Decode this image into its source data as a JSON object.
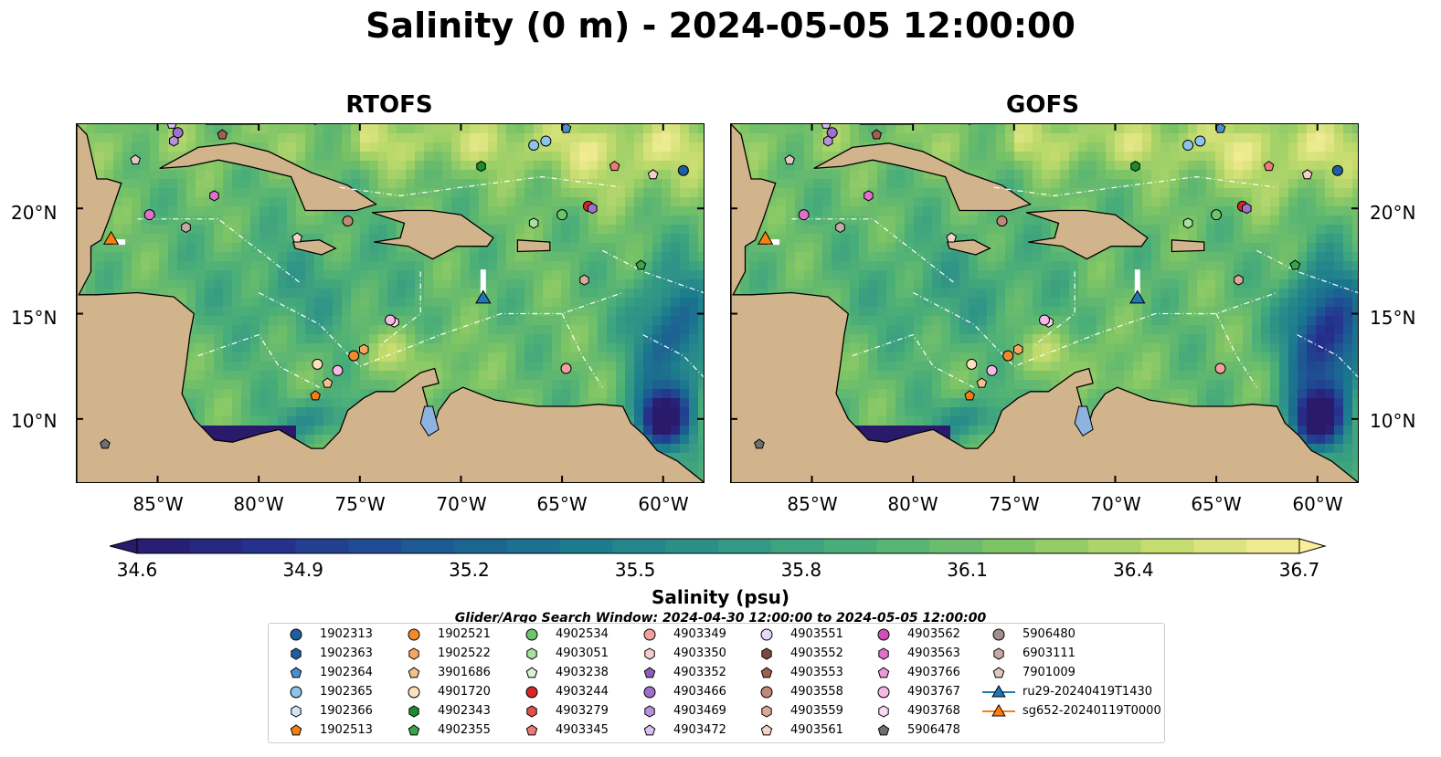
{
  "figure": {
    "title": "Salinity (0 m) - 2024-05-05 12:00:00",
    "panels": [
      {
        "title": "RTOFS"
      },
      {
        "title": "GOFS"
      }
    ],
    "lon_ticks": [
      "85°W",
      "80°W",
      "75°W",
      "70°W",
      "65°W",
      "60°W"
    ],
    "lat_ticks": [
      "20°N",
      "15°N",
      "10°N"
    ],
    "extent": {
      "lon": [
        -89,
        -58
      ],
      "lat": [
        7,
        24
      ]
    },
    "colors": {
      "land": "#d2b48c",
      "lake": "#8fb3e0",
      "contour_line": "#1a1a1a",
      "eez_line": "#ffffff"
    }
  },
  "colorbar": {
    "label": "Salinity (psu)",
    "ticks": [
      "34.6",
      "34.9",
      "35.2",
      "35.5",
      "35.8",
      "36.1",
      "36.4",
      "36.7"
    ],
    "min": 34.6,
    "max": 36.7,
    "extend": "both",
    "cmap": "haline"
  },
  "search_window": "Glider/Argo Search Window: 2024-04-30 12:00:00 to 2024-05-05 12:00:00",
  "legend": [
    {
      "label": "1902313",
      "marker": "circle",
      "color": "#1f5fa0"
    },
    {
      "label": "1902363",
      "marker": "hexagon",
      "color": "#1f5fa0"
    },
    {
      "label": "1902364",
      "marker": "pentagon",
      "color": "#4a90d0"
    },
    {
      "label": "1902365",
      "marker": "circle",
      "color": "#8ec4ea"
    },
    {
      "label": "1902366",
      "marker": "hexagon",
      "color": "#cfe8f8"
    },
    {
      "label": "1902513",
      "marker": "pentagon",
      "color": "#f57f17"
    },
    {
      "label": "1902521",
      "marker": "circle",
      "color": "#f08a2c"
    },
    {
      "label": "1902522",
      "marker": "hexagon",
      "color": "#f8a85c"
    },
    {
      "label": "3901686",
      "marker": "pentagon",
      "color": "#f6c08a"
    },
    {
      "label": "4901720",
      "marker": "circle",
      "color": "#fde0c0"
    },
    {
      "label": "4902343",
      "marker": "hexagon",
      "color": "#1e8a2e"
    },
    {
      "label": "4902355",
      "marker": "pentagon",
      "color": "#35a845"
    },
    {
      "label": "4902534",
      "marker": "circle",
      "color": "#6cc46c"
    },
    {
      "label": "4903051",
      "marker": "hexagon",
      "color": "#a8e0a0"
    },
    {
      "label": "4903238",
      "marker": "pentagon",
      "color": "#d8f4d0"
    },
    {
      "label": "4903244",
      "marker": "circle",
      "color": "#d62728"
    },
    {
      "label": "4903279",
      "marker": "hexagon",
      "color": "#e0504a"
    },
    {
      "label": "4903345",
      "marker": "pentagon",
      "color": "#ee7a78"
    },
    {
      "label": "4903349",
      "marker": "circle",
      "color": "#f4a0a0"
    },
    {
      "label": "4903350",
      "marker": "hexagon",
      "color": "#f8cccc"
    },
    {
      "label": "4903352",
      "marker": "pentagon",
      "color": "#8b5fbf"
    },
    {
      "label": "4903466",
      "marker": "circle",
      "color": "#a070cc"
    },
    {
      "label": "4903469",
      "marker": "hexagon",
      "color": "#b890dc"
    },
    {
      "label": "4903472",
      "marker": "pentagon",
      "color": "#d8c0f0"
    },
    {
      "label": "4903551",
      "marker": "circle",
      "color": "#e8d8f8"
    },
    {
      "label": "4903552",
      "marker": "hexagon",
      "color": "#7a4a40"
    },
    {
      "label": "4903553",
      "marker": "pentagon",
      "color": "#a06050"
    },
    {
      "label": "4903558",
      "marker": "circle",
      "color": "#c08878"
    },
    {
      "label": "4903559",
      "marker": "hexagon",
      "color": "#dca898"
    },
    {
      "label": "4903561",
      "marker": "pentagon",
      "color": "#f4d4c8"
    },
    {
      "label": "4903562",
      "marker": "circle",
      "color": "#d050b8"
    },
    {
      "label": "4903563",
      "marker": "hexagon",
      "color": "#e070cc"
    },
    {
      "label": "4903766",
      "marker": "pentagon",
      "color": "#ee9ad8"
    },
    {
      "label": "4903767",
      "marker": "circle",
      "color": "#f6b8e4"
    },
    {
      "label": "4903768",
      "marker": "hexagon",
      "color": "#fad8f0"
    },
    {
      "label": "5906478",
      "marker": "pentagon",
      "color": "#707070"
    },
    {
      "label": "5906480",
      "marker": "circle",
      "color": "#a09090"
    },
    {
      "label": "6903111",
      "marker": "hexagon",
      "color": "#c4aaa4"
    },
    {
      "label": "7901009",
      "marker": "pentagon",
      "color": "#e0c8c0"
    },
    {
      "label": "ru29-20240419T1430",
      "marker": "triangle-line",
      "color": "#1f77b4"
    },
    {
      "label": "sg652-20240119T0000",
      "marker": "triangle-line",
      "color": "#ff7f0e"
    }
  ],
  "observations": [
    {
      "marker": "pentagon",
      "color": "#d8c0f0",
      "lon": -84.3,
      "lat": 24.0
    },
    {
      "marker": "circle",
      "color": "#a070cc",
      "lon": -84.0,
      "lat": 23.6
    },
    {
      "marker": "hexagon",
      "color": "#b890dc",
      "lon": -84.2,
      "lat": 23.2
    },
    {
      "marker": "pentagon",
      "color": "#a06050",
      "lon": -81.8,
      "lat": 23.5
    },
    {
      "marker": "pentagon",
      "color": "#e0c8c0",
      "lon": -86.1,
      "lat": 22.3
    },
    {
      "marker": "hexagon",
      "color": "#e070cc",
      "lon": -82.2,
      "lat": 20.6
    },
    {
      "marker": "circle",
      "color": "#e070cc",
      "lon": -85.4,
      "lat": 19.7
    },
    {
      "marker": "hexagon",
      "color": "#c4aaa4",
      "lon": -83.6,
      "lat": 19.1
    },
    {
      "marker": "circle",
      "color": "#c08878",
      "lon": -75.6,
      "lat": 19.4
    },
    {
      "marker": "pentagon",
      "color": "#f4d4c8",
      "lon": -78.1,
      "lat": 18.6
    },
    {
      "marker": "circle",
      "color": "#8ec4ea",
      "lon": -66.4,
      "lat": 23.0
    },
    {
      "marker": "circle",
      "color": "#8ec4ea",
      "lon": -65.8,
      "lat": 23.2
    },
    {
      "marker": "pentagon",
      "color": "#4a90d0",
      "lon": -64.8,
      "lat": 23.8
    },
    {
      "marker": "hexagon",
      "color": "#1e8a2e",
      "lon": -69.0,
      "lat": 22.0
    },
    {
      "marker": "pentagon",
      "color": "#ee7a78",
      "lon": -62.4,
      "lat": 22.0
    },
    {
      "marker": "pentagon",
      "color": "#f8cccc",
      "lon": -60.5,
      "lat": 21.6
    },
    {
      "marker": "circle",
      "color": "#1f5fa0",
      "lon": -59.0,
      "lat": 21.8
    },
    {
      "marker": "hexagon",
      "color": "#a8e0a0",
      "lon": -66.4,
      "lat": 19.3
    },
    {
      "marker": "circle",
      "color": "#6cc46c",
      "lon": -65.0,
      "lat": 19.7
    },
    {
      "marker": "circle",
      "color": "#d62728",
      "lon": -63.7,
      "lat": 20.1
    },
    {
      "marker": "hexagon",
      "color": "#a070cc",
      "lon": -63.5,
      "lat": 20.0
    },
    {
      "marker": "pentagon",
      "color": "#35a845",
      "lon": -61.1,
      "lat": 17.3
    },
    {
      "marker": "hexagon",
      "color": "#dca898",
      "lon": -63.9,
      "lat": 16.6
    },
    {
      "marker": "hexagon",
      "color": "#fad8f0",
      "lon": -73.3,
      "lat": 14.6
    },
    {
      "marker": "circle",
      "color": "#f6b8e4",
      "lon": -73.5,
      "lat": 14.7
    },
    {
      "marker": "hexagon",
      "color": "#f8a85c",
      "lon": -74.8,
      "lat": 13.3
    },
    {
      "marker": "circle",
      "color": "#f08a2c",
      "lon": -75.3,
      "lat": 13.0
    },
    {
      "marker": "circle",
      "color": "#f6b8e4",
      "lon": -76.1,
      "lat": 12.3
    },
    {
      "marker": "circle",
      "color": "#fde0c0",
      "lon": -77.1,
      "lat": 12.6
    },
    {
      "marker": "pentagon",
      "color": "#f6c08a",
      "lon": -76.6,
      "lat": 11.7
    },
    {
      "marker": "pentagon",
      "color": "#f57f17",
      "lon": -77.2,
      "lat": 11.1
    },
    {
      "marker": "circle",
      "color": "#f4a0a0",
      "lon": -64.8,
      "lat": 12.4
    },
    {
      "marker": "pentagon",
      "color": "#707070",
      "lon": -87.6,
      "lat": 8.8
    }
  ],
  "gliders": [
    {
      "name": "ru29-20240419T1430",
      "color": "#1f77b4",
      "lon": -68.9,
      "lat": 15.7,
      "track": [
        [
          -68.9,
          17.1
        ],
        [
          -68.9,
          15.9
        ]
      ]
    },
    {
      "name": "sg652-20240119T0000",
      "color": "#ff7f0e",
      "lon": -87.3,
      "lat": 18.5,
      "track": [
        [
          -87.2,
          18.4
        ],
        [
          -86.6,
          18.4
        ]
      ]
    }
  ]
}
